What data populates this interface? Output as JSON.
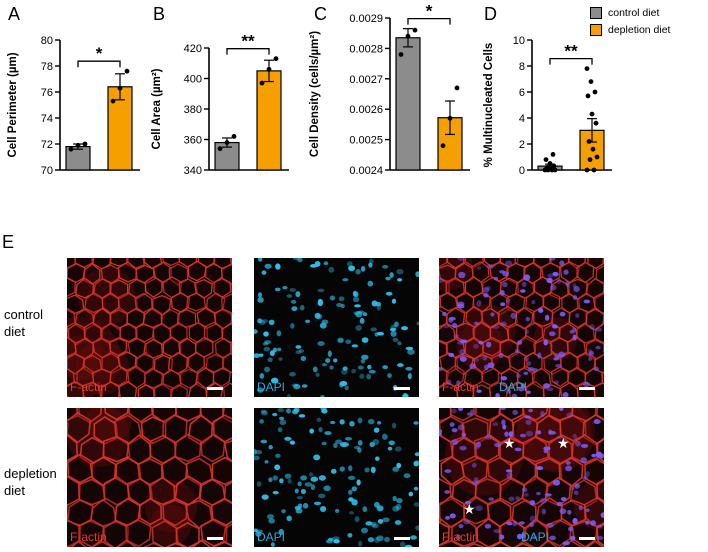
{
  "colors": {
    "control": "#8c8c8c",
    "depletion": "#f5a000",
    "factin": "#e23a2e",
    "dapi": "#2aa8d8"
  },
  "legend": {
    "entries": [
      "control diet",
      "depletion diet"
    ]
  },
  "chart_data": [
    {
      "type": "bar",
      "panel": "A",
      "ylabel": "Cell Perimeter (µm)",
      "ylim": [
        70,
        80
      ],
      "yticks": [
        70,
        72,
        74,
        76,
        78,
        80
      ],
      "categories": [
        "control diet",
        "depletion diet"
      ],
      "values": [
        71.8,
        76.4
      ],
      "errors": [
        0.2,
        1.0
      ],
      "points": [
        [
          71.6,
          71.9,
          72.0
        ],
        [
          75.3,
          76.3,
          77.6
        ]
      ],
      "significance": "*"
    },
    {
      "type": "bar",
      "panel": "B",
      "ylabel": "Cell Area (µm²)",
      "ylim": [
        340,
        420
      ],
      "yticks": [
        340,
        360,
        380,
        400,
        420
      ],
      "categories": [
        "control diet",
        "depletion diet"
      ],
      "values": [
        358,
        405
      ],
      "errors": [
        3,
        7
      ],
      "points": [
        [
          354,
          358,
          362
        ],
        [
          397,
          406,
          413
        ]
      ],
      "significance": "**"
    },
    {
      "type": "bar",
      "panel": "C",
      "ylabel": "Cell Density (cells/µm²)",
      "ylim": [
        0.0024,
        0.0029
      ],
      "yticks": [
        0.0024,
        0.0025,
        0.0026,
        0.0027,
        0.0028,
        0.0029
      ],
      "categories": [
        "control diet",
        "depletion diet"
      ],
      "values": [
        0.002835,
        0.002572
      ],
      "errors": [
        3e-05,
        5.5e-05
      ],
      "points": [
        [
          0.00278,
          0.00284,
          0.00286
        ],
        [
          0.00248,
          0.00257,
          0.00267
        ]
      ],
      "significance": "*"
    },
    {
      "type": "bar",
      "panel": "D",
      "ylabel": "% Multinucleated Cells",
      "ylim": [
        0,
        10
      ],
      "yticks": [
        0,
        2,
        4,
        6,
        8,
        10
      ],
      "categories": [
        "control diet",
        "depletion diet"
      ],
      "values": [
        0.3,
        3.05
      ],
      "errors": [
        0.15,
        0.9
      ],
      "points": [
        [
          0,
          0,
          0,
          0,
          0.1,
          0.2,
          0.3,
          0.5,
          0.8,
          1.2
        ],
        [
          0,
          0,
          0.8,
          1.0,
          1.6,
          2.2,
          3.6,
          4.3,
          5.7,
          6.0,
          6.8,
          7.8
        ]
      ],
      "significance": "**"
    }
  ],
  "figure_e": {
    "panel": "E",
    "rows": [
      {
        "label": "control\ndiet"
      },
      {
        "label": "depletion\ndiet"
      }
    ],
    "labels": {
      "factin": "F-actin",
      "dapi": "DAPI"
    },
    "star": "★"
  }
}
